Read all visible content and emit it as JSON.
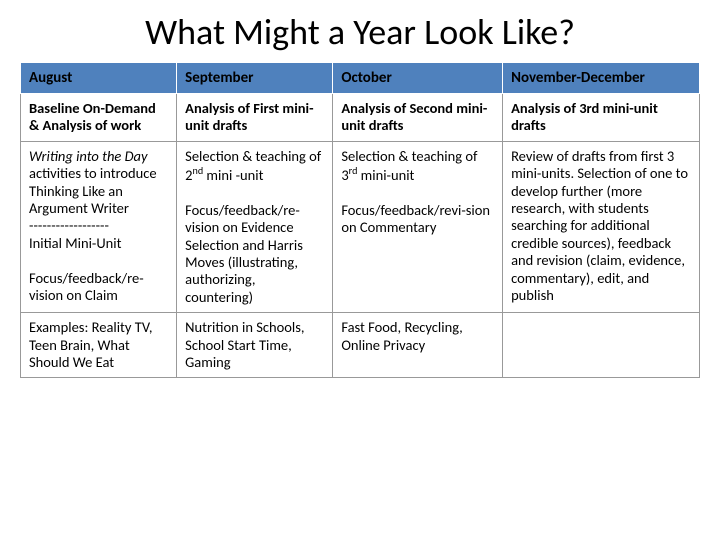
{
  "title": "What Might a Year Look Like?",
  "table": {
    "header_bg": "#4f81bd",
    "header_text_color": "#000000",
    "cell_bg": "#ffffff",
    "cell_text_color": "#000000",
    "border_color": "#ffffff",
    "title_fontsize": 36,
    "header_fontsize": 15,
    "cell_fontsize": 14.5,
    "columns": [
      "August",
      "September",
      "October",
      "November-December"
    ],
    "col_widths_pct": [
      23,
      23,
      25,
      29
    ],
    "rows": [
      {
        "cells": [
          {
            "html": "<span class='bold'>Baseline On-Demand &amp; Analysis of work</span>"
          },
          {
            "html": "<span class='bold'>Analysis of First mini-unit drafts</span>"
          },
          {
            "html": "<span class='bold'>Analysis of Second mini-unit drafts</span>"
          },
          {
            "html": "<span class='bold'>Analysis of 3rd mini-unit drafts</span>"
          }
        ]
      },
      {
        "cells": [
          {
            "html": "<span class='italic'>Writing into the Day</span> activities to introduce Thinking Like an Argument Writer<br>------------------<br>Initial Mini-Unit<br><br>Focus/feedback/re-vision on Claim"
          },
          {
            "html": "Selection &amp; teaching of 2<span class='sup'>nd</span> mini -unit<br><br>Focus/feedback/re-vision on Evidence Selection and Harris Moves (illustrating, authorizing, countering)"
          },
          {
            "html": "Selection &amp; teaching of 3<span class='sup'>rd</span> mini-unit<br><br>Focus/feedback/revi-sion on Commentary"
          },
          {
            "html": "Review of drafts from first 3 mini-units. Selection of one to develop further (more research, with students searching for additional credible sources), feedback and revision (claim, evidence, commentary), edit, and publish"
          }
        ]
      },
      {
        "cells": [
          {
            "html": "Examples: Reality TV, Teen Brain, What Should We Eat"
          },
          {
            "html": "Nutrition in Schools, School Start Time, Gaming"
          },
          {
            "html": "Fast Food, Recycling, Online Privacy"
          },
          {
            "html": ""
          }
        ]
      }
    ]
  }
}
